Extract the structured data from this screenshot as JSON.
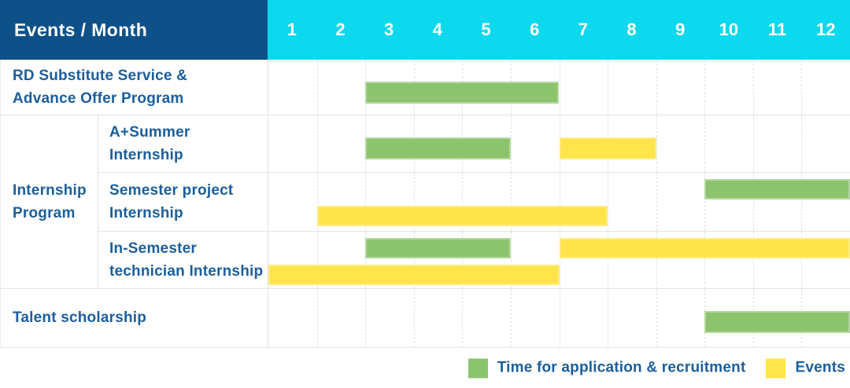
{
  "header": {
    "title": "Events / Month",
    "months": [
      "1",
      "2",
      "3",
      "4",
      "5",
      "6",
      "7",
      "8",
      "9",
      "10",
      "11",
      "12"
    ]
  },
  "colors": {
    "header_bg": "#0E5189",
    "months_bg": "#0CD8EE",
    "header_text": "#FFFFFF",
    "label_text": "#1B5E9B",
    "green": "#8BC46D",
    "yellow": "#FFE44A",
    "grid": "#E5E5E5"
  },
  "sections": [
    {
      "label": "RD Substitute Service &\nAdvance Offer Program",
      "rows": [
        {
          "sublabel": "",
          "bars": [
            {
              "color": "green",
              "start": 3,
              "end": 6,
              "line": "center"
            }
          ]
        }
      ]
    },
    {
      "label": "Internship\nProgram",
      "rows": [
        {
          "sublabel": "A+Summer\nInternship",
          "bars": [
            {
              "color": "green",
              "start": 3,
              "end": 5,
              "line": "center"
            },
            {
              "color": "yellow",
              "start": 7,
              "end": 8,
              "line": "center"
            }
          ]
        },
        {
          "sublabel": "Semester project\nInternship",
          "bars": [
            {
              "color": "green",
              "start": 10,
              "end": 12,
              "line": "top"
            },
            {
              "color": "yellow",
              "start": 2,
              "end": 7,
              "line": "bottom"
            }
          ]
        },
        {
          "sublabel": "In-Semester\ntechnician Internship",
          "bars": [
            {
              "color": "green",
              "start": 3,
              "end": 5,
              "line": "top"
            },
            {
              "color": "yellow",
              "start": 7,
              "end": 12,
              "line": "top"
            },
            {
              "color": "yellow",
              "start": 1,
              "end": 6,
              "line": "bottom"
            }
          ]
        }
      ]
    },
    {
      "label": "Talent scholarship",
      "rows": [
        {
          "sublabel": "",
          "bars": [
            {
              "color": "green",
              "start": 10,
              "end": 12,
              "line": "center"
            }
          ]
        }
      ]
    }
  ],
  "legend": [
    {
      "color": "green",
      "label": "Time for application & recruitment"
    },
    {
      "color": "yellow",
      "label": "Events"
    }
  ],
  "chart_data": {
    "type": "bar",
    "subtype": "gantt",
    "title": "Events / Month",
    "xlabel": "Month",
    "x_ticks": [
      1,
      2,
      3,
      4,
      5,
      6,
      7,
      8,
      9,
      10,
      11,
      12
    ],
    "xlim": [
      1,
      12
    ],
    "grid": true,
    "legend_position": "bottom-right",
    "legend": [
      "Time for application & recruitment",
      "Events"
    ],
    "tasks": [
      {
        "row": "RD Substitute Service & Advance Offer Program",
        "group": "",
        "intervals": [
          {
            "category": "Time for application & recruitment",
            "start_month": 3,
            "end_month": 6
          }
        ]
      },
      {
        "row": "A+Summer Internship",
        "group": "Internship Program",
        "intervals": [
          {
            "category": "Time for application & recruitment",
            "start_month": 3,
            "end_month": 5
          },
          {
            "category": "Events",
            "start_month": 7,
            "end_month": 8
          }
        ]
      },
      {
        "row": "Semester project Internship",
        "group": "Internship Program",
        "intervals": [
          {
            "category": "Time for application & recruitment",
            "start_month": 10,
            "end_month": 12
          },
          {
            "category": "Events",
            "start_month": 2,
            "end_month": 7
          }
        ]
      },
      {
        "row": "In-Semester technician Internship",
        "group": "Internship Program",
        "intervals": [
          {
            "category": "Time for application & recruitment",
            "start_month": 3,
            "end_month": 5
          },
          {
            "category": "Events",
            "start_month": 7,
            "end_month": 12
          },
          {
            "category": "Events",
            "start_month": 1,
            "end_month": 6
          }
        ]
      },
      {
        "row": "Talent scholarship",
        "group": "",
        "intervals": [
          {
            "category": "Time for application & recruitment",
            "start_month": 10,
            "end_month": 12
          }
        ]
      }
    ]
  }
}
